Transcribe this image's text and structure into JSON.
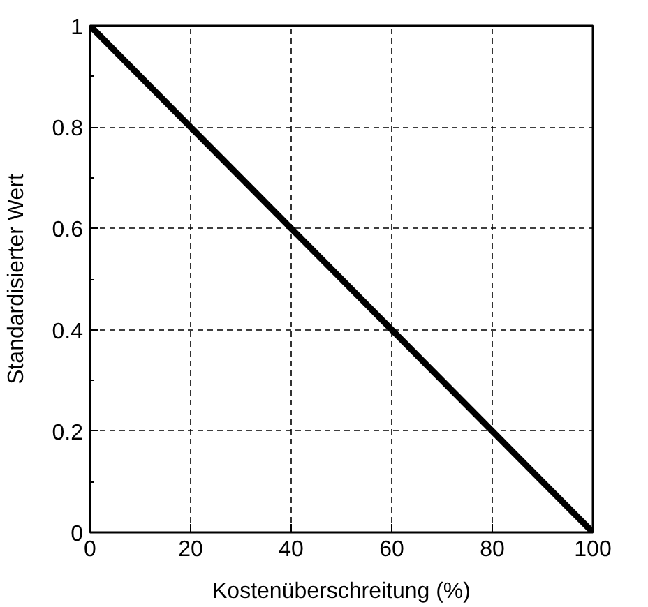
{
  "chart_data": {
    "type": "line",
    "xlabel": "Kostenüberschreitung (%)",
    "ylabel": "Standardisierter Wert",
    "x": [
      0,
      100
    ],
    "series": [
      {
        "color": "#000000",
        "values": [
          1,
          0
        ]
      }
    ],
    "xlim": [
      0,
      100
    ],
    "xticks": [
      0,
      20,
      40,
      60,
      80,
      100
    ],
    "ylim": [
      0,
      1
    ],
    "yticks": [
      0,
      0.2,
      0.4,
      0.6,
      0.8,
      1
    ],
    "grid": true,
    "marker": "none",
    "line_style": "solid"
  }
}
